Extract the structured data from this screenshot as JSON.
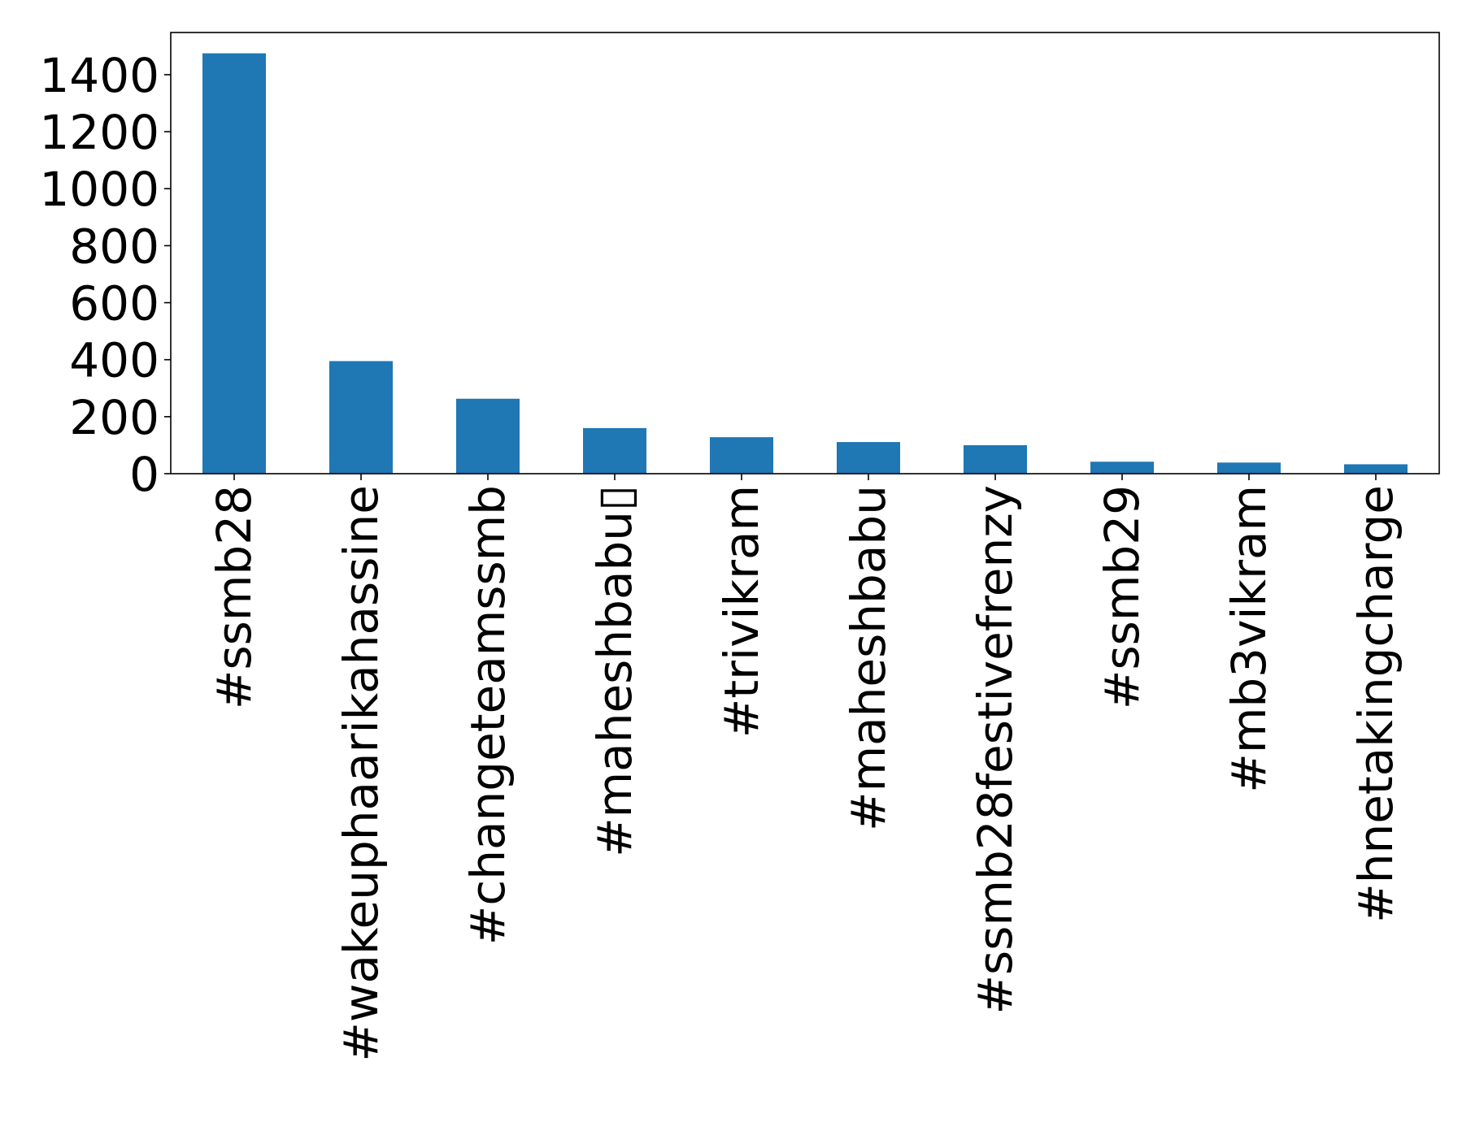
{
  "chart_data": {
    "type": "bar",
    "title": "",
    "xlabel": "",
    "ylabel": "",
    "categories": [
      "#ssmb28",
      "#wakeuphaarikahassine",
      "#changeteamssmb",
      "#maheshbabu▯",
      "#trivikram",
      "#maheshbabu",
      "#ssmb28festivefrenzy",
      "#ssmb29",
      "#mb3vikram",
      "#hnetakingcharge"
    ],
    "values": [
      1475,
      395,
      263,
      160,
      128,
      111,
      100,
      42,
      39,
      33
    ],
    "ylim": [
      0,
      1548
    ],
    "yticks": [
      0,
      200,
      400,
      600,
      800,
      1000,
      1200,
      1400
    ],
    "ytick_labels": [
      "0",
      "200",
      "400",
      "600",
      "800",
      "1000",
      "1200",
      "1400"
    ],
    "bar_color": "#1f77b4",
    "grid": false,
    "legend": "none"
  }
}
